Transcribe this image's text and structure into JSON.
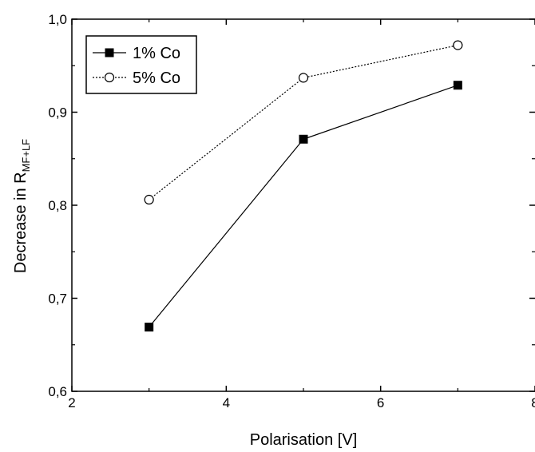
{
  "chart_data": {
    "type": "line",
    "xlabel": "Polarisation [V]",
    "ylabel": {
      "text": "Decrease in R",
      "subscript": "MF+LF"
    },
    "xlim": [
      2,
      8
    ],
    "ylim": [
      0.6,
      1.0
    ],
    "x_ticks": [
      2,
      4,
      6,
      8
    ],
    "y_ticks": [
      0.6,
      0.7,
      0.8,
      0.9,
      1.0
    ],
    "x_tick_labels": [
      "2",
      "4",
      "6",
      "8"
    ],
    "y_tick_labels": [
      "0,6",
      "0,7",
      "0,8",
      "0,9",
      "1,0"
    ],
    "grid": false,
    "legend_position": "top-left",
    "series": [
      {
        "name": "1% Co",
        "x": [
          3,
          5,
          7
        ],
        "y": [
          0.669,
          0.871,
          0.929
        ],
        "marker": "filled-square",
        "line": "solid",
        "color": "#000000"
      },
      {
        "name": "5% Co",
        "x": [
          3,
          5,
          7
        ],
        "y": [
          0.806,
          0.937,
          0.972
        ],
        "marker": "open-circle",
        "line": "dotted",
        "color": "#000000"
      }
    ]
  }
}
